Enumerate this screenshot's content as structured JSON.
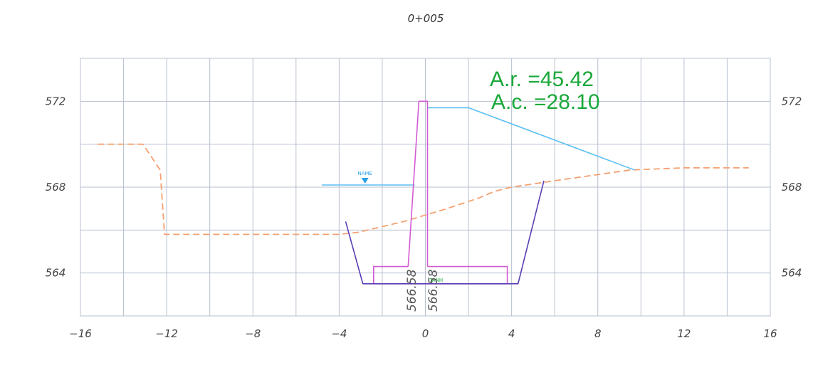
{
  "chart_data": {
    "type": "line",
    "title": "0+005",
    "xlim": [
      -16,
      16
    ],
    "ylim": [
      562,
      574
    ],
    "x_ticks": [
      "−16",
      "−12",
      "−8",
      "−4",
      "0",
      "4",
      "8",
      "12",
      "16"
    ],
    "x_tick_values": [
      -16,
      -12,
      -8,
      -4,
      0,
      4,
      8,
      12,
      16
    ],
    "y_ticks": [
      "564",
      "568",
      "572"
    ],
    "y_tick_values": [
      564,
      568,
      572
    ],
    "grid": true,
    "series": [
      {
        "style": "dashed",
        "color": "#f4a070",
        "points": [
          [
            -15.2,
            570
          ],
          [
            -13.1,
            570
          ],
          [
            -12.3,
            568.8
          ],
          [
            -12.1,
            565.8
          ],
          [
            -4,
            565.8
          ],
          [
            -3.1,
            565.9
          ],
          [
            -1,
            566.4
          ],
          [
            1,
            567
          ],
          [
            2.5,
            567.5
          ],
          [
            3.2,
            567.8
          ],
          [
            4,
            568
          ],
          [
            6,
            568.3
          ],
          [
            9.5,
            568.8
          ],
          [
            12,
            568.9
          ],
          [
            15,
            568.9
          ]
        ]
      },
      {
        "style": "solid",
        "color": "#5bbef2",
        "points": [
          [
            0.1,
            571.7
          ],
          [
            2,
            571.7
          ],
          [
            9.7,
            568.8
          ]
        ]
      },
      {
        "style": "solid",
        "color": "#5bbef2",
        "points": [
          [
            -4.8,
            568.1
          ],
          [
            -0.5,
            568.1
          ]
        ]
      },
      {
        "style": "solid",
        "color": "#d45ad4",
        "points": [
          [
            -0.8,
            564.3
          ],
          [
            -0.3,
            572
          ],
          [
            0.1,
            572
          ],
          [
            0.1,
            564.3
          ]
        ]
      },
      {
        "style": "solid",
        "color": "#d45ad4",
        "points": [
          [
            -0.8,
            564.3
          ],
          [
            -2.4,
            564.3
          ],
          [
            -2.4,
            563.5
          ],
          [
            3.8,
            563.5
          ],
          [
            3.8,
            564.3
          ],
          [
            0.1,
            564.3
          ]
        ]
      },
      {
        "style": "solid",
        "color": "#5a3db5",
        "points": [
          [
            -3.7,
            566.4
          ],
          [
            -2.9,
            563.5
          ],
          [
            4.3,
            563.5
          ],
          [
            5.5,
            568.3
          ]
        ]
      }
    ],
    "annotations": {
      "ar": "A.r. =45.42",
      "ac": "A.c. =28.10",
      "water_label": "NAME",
      "bottom_label": "TANH",
      "elev_left": "566.58",
      "elev_right": "566.58"
    },
    "colors": {
      "area_text": "#19a83a",
      "grid": "#b7c0d0",
      "water_marker": "#2aa0e8"
    }
  }
}
